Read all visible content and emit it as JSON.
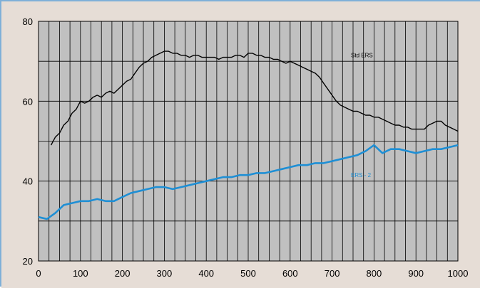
{
  "chart_data": {
    "type": "line",
    "title": "",
    "xlabel": "",
    "ylabel": "",
    "xlim": [
      0,
      1000
    ],
    "ylim": [
      20,
      80
    ],
    "x_ticks": [
      "0",
      "100",
      "200",
      "300",
      "400",
      "500",
      "600",
      "700",
      "800",
      "900",
      "1000"
    ],
    "y_ticks": [
      "20",
      "40",
      "60",
      "80"
    ],
    "grid": true,
    "colors": {
      "outer_background": "#e6ddd6",
      "plot_background": "#c0c0c0",
      "grid": "#000000",
      "frame_border": "#7fb0d8"
    },
    "series": [
      {
        "name": "Std ERS",
        "color": "#000000",
        "x": [
          30,
          40,
          50,
          60,
          70,
          80,
          90,
          100,
          110,
          120,
          130,
          140,
          150,
          160,
          170,
          180,
          190,
          200,
          210,
          220,
          230,
          240,
          250,
          260,
          270,
          280,
          290,
          300,
          310,
          320,
          330,
          340,
          350,
          360,
          370,
          380,
          390,
          400,
          410,
          420,
          430,
          440,
          450,
          460,
          470,
          480,
          490,
          500,
          510,
          520,
          530,
          540,
          550,
          560,
          570,
          580,
          590,
          600,
          610,
          620,
          630,
          640,
          650,
          660,
          670,
          680,
          690,
          700,
          710,
          720,
          730,
          740,
          750,
          760,
          770,
          780,
          790,
          800,
          810,
          820,
          830,
          840,
          850,
          860,
          870,
          880,
          890,
          900,
          910,
          920,
          930,
          940,
          950,
          960,
          970,
          980,
          990,
          1000
        ],
        "values": [
          49,
          51,
          52,
          54,
          55,
          57,
          58,
          60,
          59.5,
          60,
          61,
          61.5,
          61,
          62,
          62.5,
          62,
          63,
          64,
          65,
          65.5,
          67,
          68.5,
          69.5,
          70,
          71,
          71.5,
          72,
          72.5,
          72.5,
          72,
          72,
          71.5,
          71.5,
          71,
          71.5,
          71.5,
          71,
          71,
          71,
          71,
          70.5,
          71,
          71,
          71,
          71.5,
          71.5,
          71,
          72,
          72,
          71.5,
          71.5,
          71,
          71,
          70.5,
          70.5,
          70,
          69.5,
          70,
          69.5,
          69,
          68.5,
          68,
          67.5,
          67,
          66,
          64.5,
          63,
          61.5,
          60,
          59,
          58.5,
          58,
          57.5,
          57.5,
          57,
          56.5,
          56.5,
          56,
          56,
          55.5,
          55,
          54.5,
          54,
          54,
          53.5,
          53.5,
          53,
          53,
          53,
          53,
          54,
          54.5,
          55,
          55,
          54,
          53.5,
          53,
          52.5
        ]
      },
      {
        "name": "ERS - 2",
        "color": "#1e8fd5",
        "x": [
          0,
          20,
          40,
          60,
          80,
          100,
          120,
          140,
          160,
          180,
          200,
          220,
          240,
          260,
          280,
          300,
          320,
          340,
          360,
          380,
          400,
          420,
          440,
          460,
          480,
          500,
          520,
          540,
          560,
          580,
          600,
          620,
          640,
          660,
          680,
          700,
          720,
          740,
          760,
          780,
          800,
          820,
          840,
          860,
          880,
          900,
          920,
          940,
          960,
          980,
          1000
        ],
        "values": [
          31,
          30.5,
          32,
          34,
          34.5,
          35,
          35,
          35.5,
          35,
          35,
          36,
          37,
          37.5,
          38,
          38.5,
          38.5,
          38,
          38.5,
          39,
          39.5,
          40,
          40.5,
          41,
          41,
          41.5,
          41.5,
          42,
          42,
          42.5,
          43,
          43.5,
          44,
          44,
          44.5,
          44.5,
          45,
          45.5,
          46,
          46.5,
          47.5,
          49,
          47,
          48,
          48,
          47.5,
          47,
          47.5,
          48,
          48,
          48.5,
          49
        ]
      }
    ]
  }
}
